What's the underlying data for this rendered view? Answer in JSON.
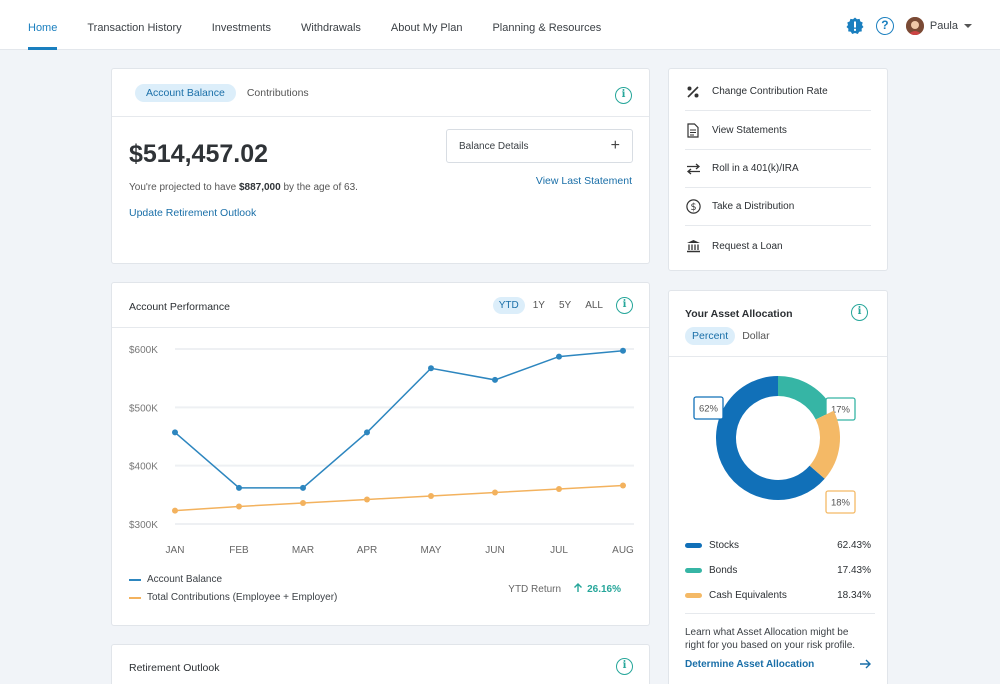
{
  "nav": {
    "items": [
      "Home",
      "Transaction History",
      "Investments",
      "Withdrawals",
      "About My Plan",
      "Planning & Resources"
    ],
    "user": "Paula"
  },
  "balance": {
    "tabs": [
      "Account Balance",
      "Contributions"
    ],
    "amount": "$514,457.02",
    "projection_prefix": "You're projected to have ",
    "projection_amount": "$887,000",
    "projection_suffix": " by the age of 63.",
    "update_link": "Update Retirement Outlook",
    "details_label": "Balance Details",
    "last_statement": "View Last Statement"
  },
  "performance": {
    "title": "Account Performance",
    "ranges": [
      "YTD",
      "1Y",
      "5Y",
      "ALL"
    ],
    "legend": [
      "Account Balance",
      "Total Contributions (Employee + Employer)"
    ],
    "ytd_label": "YTD Return",
    "ytd_value": "26.16%"
  },
  "chart_data": {
    "type": "line",
    "categories": [
      "JAN",
      "FEB",
      "MAR",
      "APR",
      "MAY",
      "JUN",
      "JUL",
      "AUG"
    ],
    "yticks": [
      "$600K",
      "$500K",
      "$400K",
      "$300K"
    ],
    "ylim": [
      300000,
      600000
    ],
    "series": [
      {
        "name": "Account Balance",
        "color": "#2d86bf",
        "values": [
          457000,
          362000,
          362000,
          457000,
          567000,
          547000,
          587000,
          597000
        ]
      },
      {
        "name": "Total Contributions (Employee + Employer)",
        "color": "#f3b25e",
        "values": [
          323000,
          330000,
          336000,
          342000,
          348000,
          354000,
          360000,
          366000
        ]
      }
    ]
  },
  "outlook": {
    "title": "Retirement Outlook"
  },
  "actions": [
    "Change Contribution Rate",
    "View Statements",
    "Roll in a 401(k)/IRA",
    "Take a Distribution",
    "Request a Loan"
  ],
  "allocation": {
    "title": "Your Asset Allocation",
    "toggle": [
      "Percent",
      "Dollar"
    ],
    "slices": [
      {
        "name": "Stocks",
        "value": 62.43,
        "label": "62%",
        "pct": "62.43%",
        "color": "#1170b8"
      },
      {
        "name": "Bonds",
        "value": 17.43,
        "label": "17%",
        "pct": "17.43%",
        "color": "#36b5a5"
      },
      {
        "name": "Cash Equivalents",
        "value": 18.34,
        "label": "18%",
        "pct": "18.34%",
        "color": "#f4b966"
      }
    ],
    "note": "Learn what Asset Allocation might be right for you based on your risk profile.",
    "link": "Determine Asset Allocation"
  },
  "colors": {
    "accent": "#1a7fbf",
    "teal": "#26a69a"
  }
}
